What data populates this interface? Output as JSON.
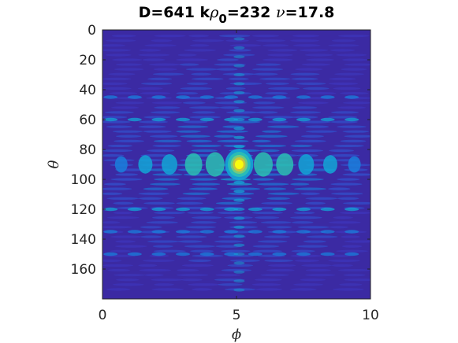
{
  "chart_data": {
    "type": "heatmap",
    "title": "D=641 kρ₀=232 ν=17.8",
    "title_parts": {
      "d": "D=641 k",
      "rho": "ρ",
      "sub": "0",
      "mid": "=232 ",
      "nu": "ν",
      "end": "=17.8"
    },
    "xlabel": "ϕ",
    "ylabel": "θ",
    "xlim": [
      0,
      10
    ],
    "ylim": [
      0,
      180
    ],
    "y_reversed": true,
    "xticks": [
      0,
      5,
      10
    ],
    "xtick_labels": [
      "0",
      "5",
      "10"
    ],
    "yticks": [
      0,
      20,
      40,
      60,
      80,
      100,
      120,
      140,
      160
    ],
    "ytick_labels": [
      "0",
      "20",
      "40",
      "60",
      "80",
      "100",
      "120",
      "140",
      "160"
    ],
    "colormap": "parula",
    "peak": {
      "x": 5.1,
      "y": 90
    },
    "grid": false,
    "colors": {
      "background": "#3b2aa3",
      "peak": "#f9fb0e",
      "mid": "#13a6d6",
      "tick_text": "#262626"
    }
  }
}
